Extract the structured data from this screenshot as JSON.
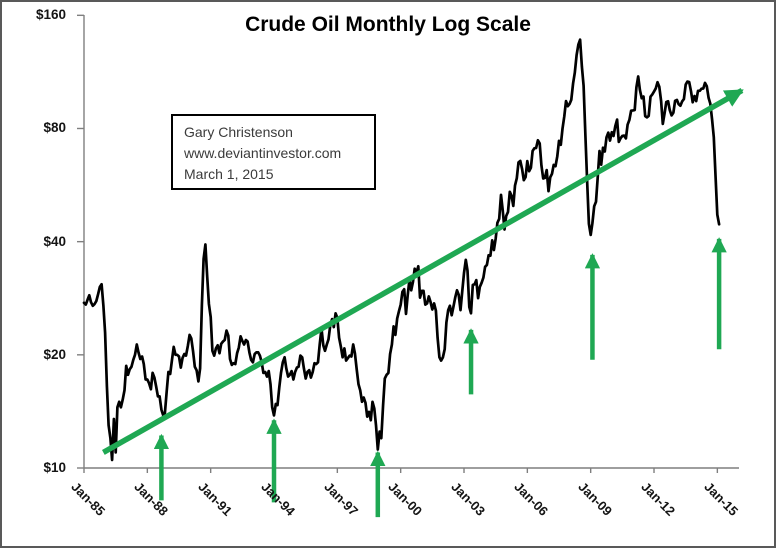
{
  "title": "Crude Oil Monthly Log Scale",
  "annotation": {
    "lines": [
      "Gary Christenson",
      "www.deviantinvestor.com",
      "March 1, 2015"
    ]
  },
  "colors": {
    "price_line": "#000000",
    "trend_green": "#1fa853",
    "axis": "#7f7f7f",
    "label_text": "#141414"
  },
  "chart_data": {
    "type": "line",
    "title": "Crude Oil Monthly Log Scale",
    "y_scale": "log",
    "legend": "none",
    "grid": "off",
    "y_axis": {
      "range": [
        10,
        160
      ],
      "ticks": [
        {
          "label": "$160",
          "value": 160
        },
        {
          "label": "$80",
          "value": 80
        },
        {
          "label": "$40",
          "value": 40
        },
        {
          "label": "$20",
          "value": 20
        },
        {
          "label": "$10",
          "value": 10
        }
      ]
    },
    "x_axis": {
      "range": [
        "1985-01",
        "2016-01"
      ],
      "ticks": [
        {
          "label": "Jan-85",
          "month": "1985-01"
        },
        {
          "label": "Jan-88",
          "month": "1988-01"
        },
        {
          "label": "Jan-91",
          "month": "1991-01"
        },
        {
          "label": "Jan-94",
          "month": "1994-01"
        },
        {
          "label": "Jan-97",
          "month": "1997-01"
        },
        {
          "label": "Jan-00",
          "month": "2000-01"
        },
        {
          "label": "Jan-03",
          "month": "2003-01"
        },
        {
          "label": "Jan-06",
          "month": "2006-01"
        },
        {
          "label": "Jan-09",
          "month": "2009-01"
        },
        {
          "label": "Jan-12",
          "month": "2012-01"
        },
        {
          "label": "Jan-15",
          "month": "2015-01"
        }
      ]
    },
    "series": {
      "name": "Crude oil price (USD, monthly)",
      "start_month": "1985-01",
      "interval": "monthly",
      "prices": [
        27.5,
        27.2,
        28.0,
        28.8,
        27.6,
        27.0,
        27.3,
        27.8,
        29.0,
        30.3,
        30.8,
        27.0,
        22.9,
        16.5,
        13.0,
        12.0,
        10.5,
        13.5,
        11.0,
        14.5,
        15.0,
        14.5,
        15.2,
        16.1,
        18.7,
        17.7,
        18.3,
        18.6,
        19.4,
        20.0,
        21.3,
        20.3,
        19.5,
        19.8,
        18.9,
        17.2,
        17.2,
        16.8,
        16.2,
        17.9,
        17.4,
        16.5,
        15.5,
        15.5,
        14.3,
        13.8,
        14.0,
        16.0,
        18.0,
        17.8,
        19.4,
        21.0,
        20.0,
        20.0,
        19.8,
        18.5,
        19.6,
        20.1,
        19.9,
        21.1,
        22.6,
        22.1,
        20.4,
        18.6,
        18.2,
        17.0,
        18.4,
        27.2,
        36.0,
        39.3,
        32.3,
        27.3,
        25.2,
        20.5,
        19.9,
        20.8,
        21.2,
        20.2,
        21.4,
        21.7,
        21.9,
        23.2,
        22.5,
        19.5,
        18.8,
        19.0,
        18.9,
        20.2,
        20.9,
        22.4,
        21.8,
        21.3,
        21.9,
        21.7,
        20.3,
        19.4,
        19.1,
        20.1,
        20.3,
        20.3,
        19.9,
        19.1,
        17.9,
        18.0,
        17.5,
        18.1,
        16.7,
        14.5,
        13.8,
        14.8,
        14.7,
        16.4,
        17.9,
        19.1,
        19.7,
        18.4,
        17.5,
        17.7,
        18.1,
        17.2,
        18.0,
        18.5,
        18.6,
        19.9,
        19.7,
        18.4,
        17.3,
        18.0,
        18.2,
        17.4,
        18.0,
        19.0,
        18.9,
        19.1,
        21.3,
        23.5,
        21.2,
        20.5,
        21.3,
        22.0,
        24.0,
        24.9,
        23.7,
        25.8,
        25.1,
        22.2,
        21.0,
        19.7,
        20.8,
        19.3,
        19.6,
        19.9,
        19.8,
        21.3,
        20.2,
        18.3,
        16.7,
        16.1,
        15.0,
        15.4,
        14.9,
        13.7,
        14.1,
        13.4,
        15.0,
        14.4,
        13.0,
        11.2,
        12.5,
        12.0,
        14.7,
        17.3,
        17.7,
        17.9,
        20.1,
        21.3,
        23.8,
        22.6,
        25.0,
        26.1,
        27.2,
        29.4,
        29.9,
        25.7,
        28.8,
        31.8,
        29.7,
        31.3,
        33.9,
        33.1,
        34.4,
        28.4,
        29.6,
        29.6,
        27.2,
        27.4,
        28.6,
        27.6,
        26.4,
        27.4,
        26.2,
        22.2,
        19.7,
        19.3,
        19.7,
        20.7,
        24.4,
        26.3,
        27.0,
        25.5,
        26.9,
        28.4,
        29.7,
        28.9,
        26.3,
        29.4,
        33.0,
        35.8,
        33.5,
        26.8,
        25.8,
        30.7,
        30.8,
        31.6,
        28.3,
        30.3,
        31.1,
        32.1,
        34.3,
        34.7,
        36.8,
        36.7,
        40.3,
        38.0,
        40.8,
        44.9,
        46.0,
        53.3,
        48.5,
        43.1,
        46.8,
        48.0,
        54.3,
        53.0,
        49.8,
        56.4,
        59.0,
        65.0,
        65.6,
        62.4,
        58.3,
        59.4,
        65.5,
        61.6,
        62.9,
        69.7,
        70.9,
        71.0,
        74.4,
        73.0,
        63.9,
        58.9,
        59.1,
        62.0,
        54.5,
        59.3,
        60.6,
        64.0,
        63.5,
        67.5,
        74.2,
        72.4,
        79.9,
        86.2,
        94.6,
        91.7,
        93.0,
        95.4,
        105.5,
        112.6,
        125.4,
        133.9,
        137.8,
        116.7,
        103.9,
        76.7,
        57.4,
        44.6,
        41.7,
        44.8,
        49.7,
        51.1,
        59.2,
        69.7,
        64.1,
        71.1,
        69.5,
        75.8,
        78.0,
        74.3,
        78.2,
        76.4,
        81.2,
        84.5,
        73.7,
        75.4,
        76.4,
        76.6,
        75.3,
        81.9,
        84.3,
        89.2,
        89.4,
        89.6,
        102.9,
        110.0,
        101.3,
        96.3,
        97.3,
        86.3,
        85.6,
        86.4,
        97.2,
        98.6,
        100.3,
        102.3,
        106.2,
        103.3,
        94.7,
        82.3,
        87.9,
        94.1,
        94.5,
        89.5,
        86.7,
        88.2,
        94.8,
        95.3,
        92.9,
        92.0,
        94.5,
        95.8,
        104.7,
        106.6,
        106.3,
        100.5,
        93.9,
        97.6,
        94.6,
        100.8,
        100.8,
        102.1,
        102.2,
        105.8,
        103.6,
        96.5,
        93.2,
        84.4,
        75.8,
        59.3,
        47.2,
        44.5
      ]
    },
    "trend_arrow": {
      "from": {
        "month": "1985-12",
        "price": 11.0
      },
      "to": {
        "month": "2016-03",
        "price": 101.0
      }
    },
    "event_arrows": [
      {
        "month": "1988-09",
        "tip_price": 12.2,
        "tail_price": 8.2
      },
      {
        "month": "1994-01",
        "tip_price": 13.4,
        "tail_price": 8.1
      },
      {
        "month": "1998-12",
        "tip_price": 11.0,
        "tail_price": 7.4
      },
      {
        "month": "2003-05",
        "tip_price": 23.3,
        "tail_price": 15.7
      },
      {
        "month": "2009-02",
        "tip_price": 36.9,
        "tail_price": 19.4
      },
      {
        "month": "2015-02",
        "tip_price": 40.7,
        "tail_price": 20.7
      }
    ]
  }
}
